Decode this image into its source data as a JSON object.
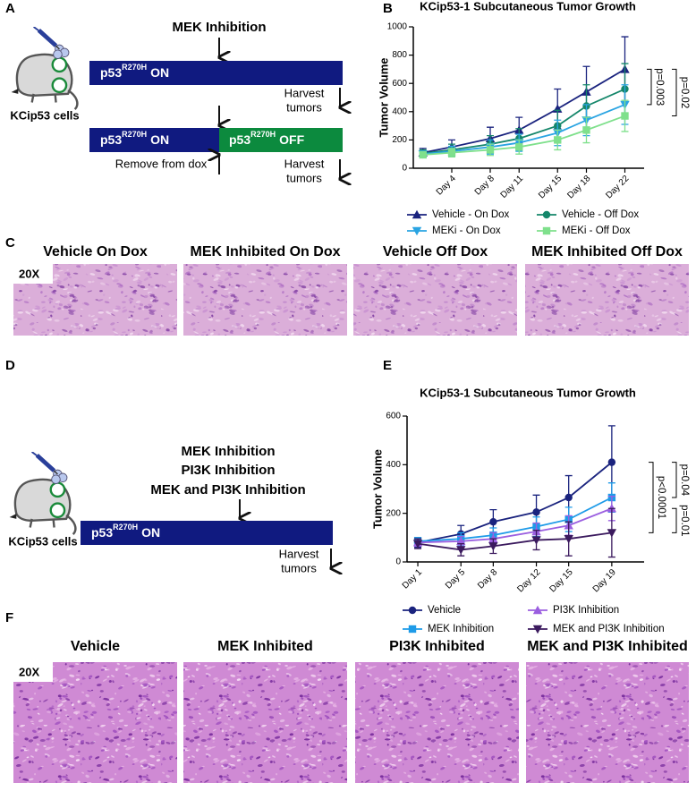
{
  "panel_labels": [
    "A",
    "B",
    "C",
    "D",
    "E",
    "F"
  ],
  "diagram_a": {
    "treatment": "MEK Inhibition",
    "cells": "KCip53 cells",
    "gene": "p53",
    "allele": "R270H",
    "on": "ON",
    "off": "OFF",
    "harvest": [
      "Harvest",
      "tumors"
    ],
    "remove": "Remove from dox"
  },
  "diagram_d": {
    "treatments": [
      "MEK Inhibition",
      "PI3K Inhibition",
      "MEK and PI3K Inhibition"
    ],
    "cells": "KCip53 cells",
    "gene": "p53",
    "allele": "R270H",
    "on": "ON",
    "harvest": [
      "Harvest",
      "tumors"
    ]
  },
  "histology_c": {
    "magnification": "20X",
    "titles": [
      "Vehicle On Dox",
      "MEK Inhibited On Dox",
      "Vehicle Off Dox",
      "MEK Inhibited Off Dox"
    ]
  },
  "histology_f": {
    "magnification": "20X",
    "titles": [
      "Vehicle",
      "MEK Inhibited",
      "PI3K Inhibited",
      "MEK and PI3K Inhibited"
    ]
  },
  "chart_data": [
    {
      "type": "line",
      "title": "KCip53-1 Subcutaneous Tumor Growth",
      "y_label": "Tumor Volume",
      "x": [
        1,
        4,
        8,
        11,
        15,
        18,
        22
      ],
      "xlim": [
        0,
        24
      ],
      "xticks": [
        {
          "value": 4,
          "label": "Day 4"
        },
        {
          "value": 8,
          "label": "Day 8"
        },
        {
          "value": 11,
          "label": "Day 11"
        },
        {
          "value": 15,
          "label": "Day 15"
        },
        {
          "value": 18,
          "label": "Day 18"
        },
        {
          "value": 22,
          "label": "Day 22"
        }
      ],
      "ylim": [
        0,
        1000
      ],
      "yticks": [
        0,
        200,
        400,
        600,
        800,
        1000
      ],
      "legend": "bottom",
      "series": [
        {
          "name": "Vehicle - On Dox",
          "color": "#1a237e",
          "marker": "triangle-up",
          "values": [
            110,
            150,
            210,
            270,
            420,
            540,
            700
          ],
          "errors": [
            30,
            50,
            80,
            90,
            140,
            180,
            230
          ]
        },
        {
          "name": "Vehicle - Off Dox",
          "color": "#14866a",
          "marker": "circle",
          "values": [
            105,
            130,
            170,
            210,
            300,
            440,
            560
          ],
          "errors": [
            25,
            40,
            60,
            70,
            110,
            150,
            180
          ]
        },
        {
          "name": "MEKi - On Dox",
          "color": "#2aa4e2",
          "marker": "triangle-down",
          "values": [
            100,
            120,
            150,
            180,
            250,
            340,
            450
          ],
          "errors": [
            20,
            35,
            50,
            60,
            90,
            110,
            140
          ]
        },
        {
          "name": "MEKi - Off Dox",
          "color": "#7fe08c",
          "marker": "square",
          "values": [
            95,
            110,
            130,
            150,
            200,
            270,
            370
          ],
          "errors": [
            20,
            30,
            40,
            50,
            70,
            90,
            110
          ]
        }
      ],
      "annotations": [
        "p=0.02",
        "p=0.003"
      ]
    },
    {
      "type": "line",
      "title": "KCip53-1 Subcutaneous Tumor Growth",
      "y_label": "Tumor Volume",
      "x": [
        1,
        5,
        8,
        12,
        15,
        19
      ],
      "xlim": [
        0,
        22
      ],
      "xticks": [
        {
          "value": 1,
          "label": "Day 1"
        },
        {
          "value": 5,
          "label": "Day 5"
        },
        {
          "value": 8,
          "label": "Day 8"
        },
        {
          "value": 12,
          "label": "Day 12"
        },
        {
          "value": 15,
          "label": "Day 15"
        },
        {
          "value": 19,
          "label": "Day 19"
        }
      ],
      "ylim": [
        0,
        600
      ],
      "yticks": [
        0,
        200,
        400,
        600
      ],
      "legend": "bottom",
      "series": [
        {
          "name": "Vehicle",
          "color": "#1a237e",
          "marker": "circle",
          "values": [
            80,
            115,
            165,
            205,
            265,
            410
          ],
          "errors": [
            20,
            35,
            50,
            70,
            90,
            150
          ]
        },
        {
          "name": "MEK Inhibition",
          "color": "#1e9be8",
          "marker": "square",
          "values": [
            85,
            95,
            110,
            145,
            175,
            265
          ],
          "errors": [
            15,
            25,
            30,
            40,
            50,
            60
          ]
        },
        {
          "name": "PI3K Inhibition",
          "color": "#9b5fe0",
          "marker": "triangle-up",
          "values": [
            80,
            85,
            95,
            125,
            150,
            220
          ],
          "errors": [
            15,
            20,
            25,
            35,
            40,
            50
          ]
        },
        {
          "name": "MEK and PI3K Inhibition",
          "color": "#3b1a5e",
          "marker": "triangle-down",
          "values": [
            75,
            50,
            65,
            90,
            95,
            120
          ],
          "errors": [
            20,
            25,
            30,
            40,
            70,
            100
          ]
        }
      ],
      "annotations": [
        "p=0.04",
        "p<0.0001",
        "p=0.01"
      ]
    }
  ]
}
